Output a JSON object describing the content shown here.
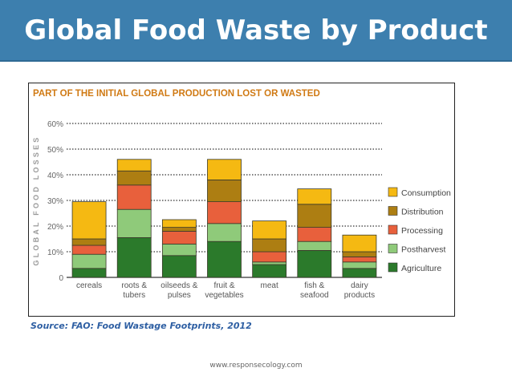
{
  "slide": {
    "title": "Global Food Waste by Product",
    "source": "Source: FAO: Food Wastage Footprints, 2012",
    "footer": "www.responsecology.com"
  },
  "chart_data": {
    "type": "stacked-bar",
    "title": "PART OF THE INITIAL GLOBAL PRODUCTION LOST OR WASTED",
    "ylabel": "GLOBAL FOOD LOSSES",
    "xlabel": "",
    "ylim": [
      0,
      60
    ],
    "yticks": [
      0,
      10,
      20,
      30,
      40,
      50,
      60
    ],
    "ytick_labels": [
      "0",
      "10%",
      "20%",
      "30%",
      "40%",
      "50%",
      "60%"
    ],
    "categories": [
      [
        "cereals"
      ],
      [
        "roots &",
        "tubers"
      ],
      [
        "oilseeds &",
        "pulses"
      ],
      [
        "fruit &",
        "vegetables"
      ],
      [
        "meat"
      ],
      [
        "fish &",
        "seafood"
      ],
      [
        "dairy",
        "products"
      ]
    ],
    "series": [
      {
        "name": "Agriculture",
        "color": "#2b7a2b",
        "values": [
          3.5,
          15.5,
          8.5,
          14,
          5,
          10.5,
          3.5
        ]
      },
      {
        "name": "Postharvest",
        "color": "#8fca7a",
        "values": [
          5.5,
          11,
          4.5,
          7,
          1,
          3.5,
          2.5
        ]
      },
      {
        "name": "Processing",
        "color": "#e8603c",
        "values": [
          3.5,
          9.5,
          5,
          8.5,
          4,
          5.5,
          2
        ]
      },
      {
        "name": "Distribution",
        "color": "#ad7e12",
        "values": [
          2.5,
          5.5,
          1.5,
          8.5,
          5,
          9,
          2
        ]
      },
      {
        "name": "Consumption",
        "color": "#f5b912",
        "values": [
          14.5,
          4.5,
          3,
          8,
          7,
          6,
          6.5
        ]
      }
    ],
    "legend": "right",
    "grid": "dotted-horizontal",
    "title_color": "#d07a14"
  }
}
